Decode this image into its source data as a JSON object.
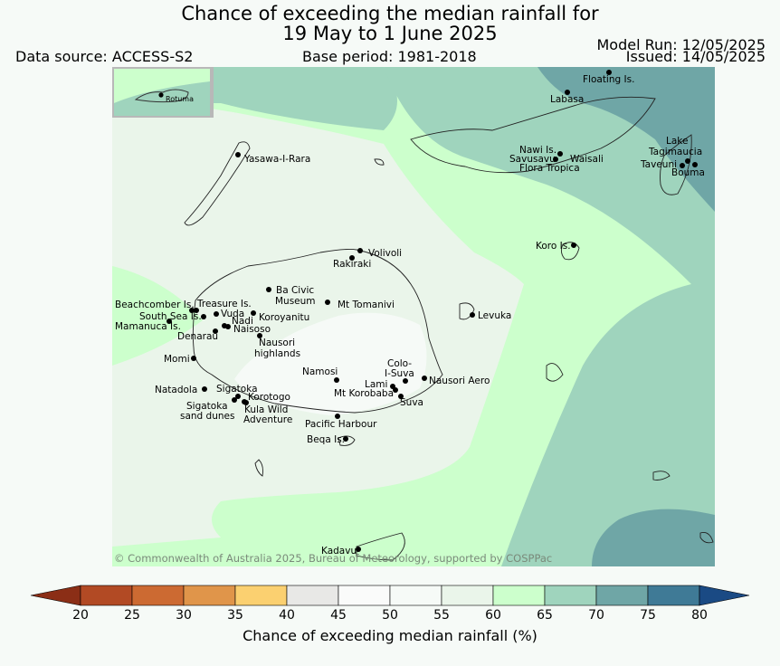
{
  "header": {
    "title_line1": "Chance of exceeding the median rainfall for",
    "title_line2": "19 May to 1 June 2025",
    "data_source": "Data source: ACCESS-S2",
    "base_period": "Base period: 1981-2018",
    "model_run": "Model Run: 12/05/2025",
    "issued": "Issued: 14/05/2025"
  },
  "map": {
    "copyright": "© Commonwealth of Australia 2025, Bureau of Meteorology, supported by COSPPac",
    "inset_label": "Rotuma",
    "places": [
      {
        "name": "Floating Is."
      },
      {
        "name": "Labasa"
      },
      {
        "name": "Yasawa-I-Rara"
      },
      {
        "name": "Nawi Is."
      },
      {
        "name": "Savusavu"
      },
      {
        "name": "Waisali"
      },
      {
        "name": "Flora Tropica"
      },
      {
        "name": "Lake"
      },
      {
        "name": "Tagimaucia"
      },
      {
        "name": "Taveuni"
      },
      {
        "name": "Bouma"
      },
      {
        "name": "Koro Is."
      },
      {
        "name": "Volivoli"
      },
      {
        "name": "Rakiraki"
      },
      {
        "name": "Ba Civic"
      },
      {
        "name": "Museum"
      },
      {
        "name": "Mt Tomanivi"
      },
      {
        "name": "Beachcomber Is."
      },
      {
        "name": "Treasure Is."
      },
      {
        "name": "South Sea Is."
      },
      {
        "name": "Vuda"
      },
      {
        "name": "Koroyanitu"
      },
      {
        "name": "Nadi"
      },
      {
        "name": "Mamanuca Is."
      },
      {
        "name": "Naisoso"
      },
      {
        "name": "Denarau"
      },
      {
        "name": "Levuka"
      },
      {
        "name": "Nausori"
      },
      {
        "name": "highlands"
      },
      {
        "name": "Momi"
      },
      {
        "name": "Namosi"
      },
      {
        "name": "Colo-"
      },
      {
        "name": "I-Suva"
      },
      {
        "name": "Lami"
      },
      {
        "name": "Nausori Aero"
      },
      {
        "name": "Natadola"
      },
      {
        "name": "Sigatoka"
      },
      {
        "name": "Mt Korobaba"
      },
      {
        "name": "Korotogo"
      },
      {
        "name": "Suva"
      },
      {
        "name": "Sigatoka"
      },
      {
        "name": "sand dunes"
      },
      {
        "name": "Kula Wild"
      },
      {
        "name": "Adventure"
      },
      {
        "name": "Pacific Harbour"
      },
      {
        "name": "Beqa Is."
      },
      {
        "name": "Kadavu"
      }
    ]
  },
  "colorbar": {
    "title": "Chance of exceeding median rainfall (%)",
    "ticks": [
      "20",
      "25",
      "30",
      "35",
      "40",
      "45",
      "50",
      "55",
      "60",
      "65",
      "70",
      "75",
      "80"
    ],
    "colors": [
      "#8b2e16",
      "#b24a24",
      "#cc6a32",
      "#e0954a",
      "#fbd070",
      "#e8e8e6",
      "#fafbfa",
      "#f6faf7",
      "#eaf5ea",
      "#ccffcc",
      "#9fd4bd",
      "#6fa6a6",
      "#3f7a96",
      "#1a4a84"
    ]
  }
}
